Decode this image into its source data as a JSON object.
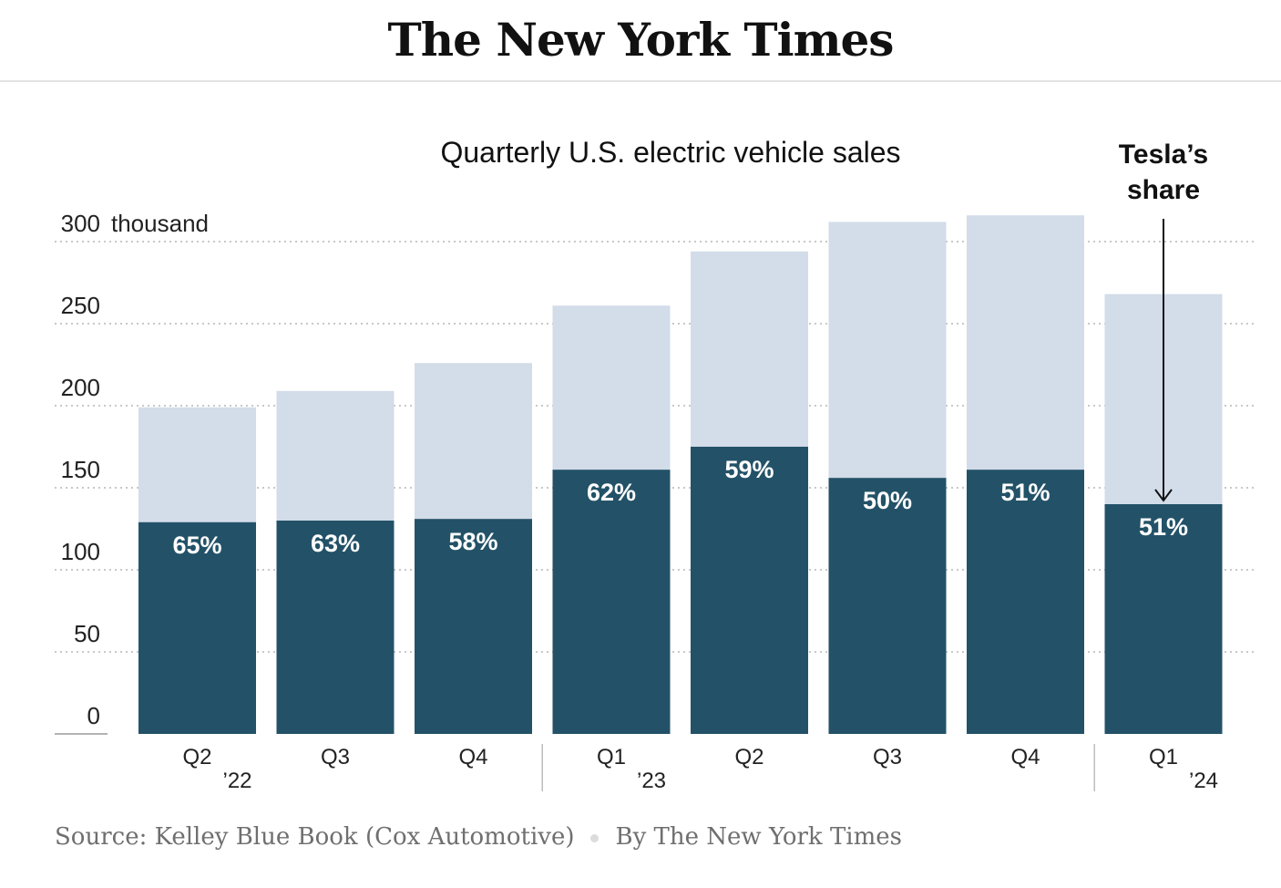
{
  "masthead": "The New York Times",
  "footer": {
    "source": "Source: Kelley Blue Book (Cox Automotive)",
    "byline": "By The New York Times"
  },
  "chart_data": {
    "type": "bar",
    "title": "Quarterly U.S. electric vehicle sales",
    "annotation": "Tesla’s share",
    "y_unit_label": "thousand",
    "ylim": [
      0,
      300
    ],
    "yticks": [
      0,
      50,
      100,
      150,
      200,
      250,
      300
    ],
    "grid": true,
    "categories": [
      "Q2",
      "Q3",
      "Q4",
      "Q1",
      "Q2",
      "Q3",
      "Q4",
      "Q1"
    ],
    "year_labels": [
      {
        "index": 0,
        "label": "’22"
      },
      {
        "index": 3,
        "label": "’23"
      },
      {
        "index": 7,
        "label": "’24"
      }
    ],
    "series": [
      {
        "values": [
          199,
          209,
          226,
          261,
          294,
          312,
          316,
          268
        ]
      },
      {
        "values": [
          129,
          130,
          131,
          161,
          175,
          156,
          161,
          140
        ]
      }
    ],
    "share_labels": [
      "65%",
      "63%",
      "58%",
      "62%",
      "59%",
      "50%",
      "51%",
      "51%"
    ],
    "colors": {
      "total": "#d3dce9",
      "tesla": "#235268",
      "grid": "#b5b5b5",
      "text": "#222222",
      "share_text": "#ffffff"
    }
  }
}
